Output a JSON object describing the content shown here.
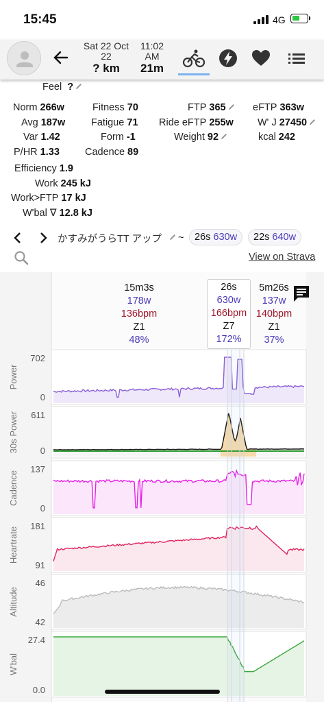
{
  "status_bar": {
    "time": "15:45",
    "network": "4G"
  },
  "header": {
    "date": "Sat 22 Oct 22",
    "time": "11:02 AM",
    "distance": "? km",
    "duration": "21m",
    "tabs": [
      "ride-icon",
      "lightning-icon",
      "heart-icon",
      "list-icon"
    ],
    "active_tab": "ride-icon"
  },
  "feel": {
    "label": "Feel",
    "value": "?"
  },
  "metrics": {
    "norm": {
      "label": "Norm",
      "value": "266w"
    },
    "avg": {
      "label": "Avg",
      "value": "187w"
    },
    "var": {
      "label": "Var",
      "value": "1.42"
    },
    "phr": {
      "label": "P/HR",
      "value": "1.33"
    },
    "fitness": {
      "label": "Fitness",
      "value": "70"
    },
    "fatigue": {
      "label": "Fatigue",
      "value": "71"
    },
    "form": {
      "label": "Form",
      "value": "-1"
    },
    "cadence": {
      "label": "Cadence",
      "value": "89"
    },
    "ftp": {
      "label": "FTP",
      "value": "365"
    },
    "ride_eftp": {
      "label": "Ride eFTP",
      "value": "255w"
    },
    "weight": {
      "label": "Weight",
      "value": "92"
    },
    "eftp": {
      "label": "eFTP",
      "value": "363w"
    },
    "wj": {
      "label": "W' J",
      "value": "27450"
    },
    "kcal": {
      "label": "kcal",
      "value": "242"
    },
    "efficiency": {
      "label": "Efficiency",
      "value": "1.9"
    },
    "work": {
      "label": "Work",
      "value": "245 kJ"
    },
    "work_ftp": {
      "label": "Work>FTP",
      "value": "17 kJ"
    },
    "wbal": {
      "label": "W'bal ∇",
      "value": "12.8 kJ"
    }
  },
  "lap_nav": {
    "name": "かすみがうらTT アップ",
    "tilde": "~",
    "chips": [
      {
        "dur": "26s",
        "watts": "630w"
      },
      {
        "dur": "22s",
        "watts": "640w"
      }
    ]
  },
  "view_on_strava": "View on Strava",
  "intervals": [
    {
      "dur": "15m3s",
      "watts": "178w",
      "hr": "136bpm",
      "zone": "Z1",
      "pct": "48%"
    },
    {
      "dur": "26s",
      "watts": "630w",
      "hr": "166bpm",
      "zone": "Z7",
      "pct": "172%"
    },
    {
      "dur": "5m26s",
      "watts": "137w",
      "hr": "140bpm",
      "zone": "Z1",
      "pct": "37%"
    }
  ],
  "charts": {
    "power": {
      "label": "Power",
      "max": "702",
      "min": "0",
      "color": "#8a5fd6"
    },
    "power30": {
      "label": "30s Power",
      "max": "611",
      "min": "0",
      "color": "#111111"
    },
    "cadence": {
      "label": "Cadence",
      "max": "137",
      "min": "0",
      "color": "#e81ee8"
    },
    "heartrate": {
      "label": "Heartrate",
      "max": "181",
      "min": "91",
      "color": "#e0245e"
    },
    "altitude": {
      "label": "Altitude",
      "max": "46",
      "min": "42",
      "color": "#bbbbbb"
    },
    "wbal": {
      "label": "W'bal",
      "max": "27.4",
      "min": "0.0",
      "color": "#3aa83a"
    },
    "next_panel_max": "50"
  }
}
